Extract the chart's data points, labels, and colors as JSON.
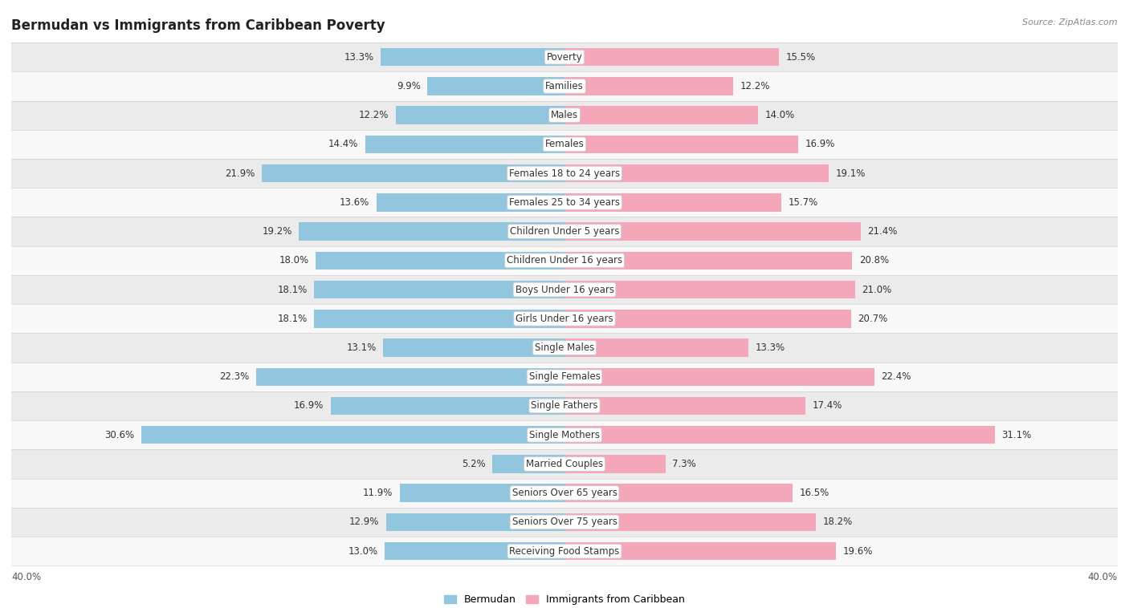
{
  "title": "Bermudan vs Immigrants from Caribbean Poverty",
  "source": "Source: ZipAtlas.com",
  "categories": [
    "Poverty",
    "Families",
    "Males",
    "Females",
    "Females 18 to 24 years",
    "Females 25 to 34 years",
    "Children Under 5 years",
    "Children Under 16 years",
    "Boys Under 16 years",
    "Girls Under 16 years",
    "Single Males",
    "Single Females",
    "Single Fathers",
    "Single Mothers",
    "Married Couples",
    "Seniors Over 65 years",
    "Seniors Over 75 years",
    "Receiving Food Stamps"
  ],
  "bermudan": [
    13.3,
    9.9,
    12.2,
    14.4,
    21.9,
    13.6,
    19.2,
    18.0,
    18.1,
    18.1,
    13.1,
    22.3,
    16.9,
    30.6,
    5.2,
    11.9,
    12.9,
    13.0
  ],
  "caribbean": [
    15.5,
    12.2,
    14.0,
    16.9,
    19.1,
    15.7,
    21.4,
    20.8,
    21.0,
    20.7,
    13.3,
    22.4,
    17.4,
    31.1,
    7.3,
    16.5,
    18.2,
    19.6
  ],
  "blue_color": "#92C5DE",
  "pink_color": "#F4A7B9",
  "row_bg_even": "#ebebeb",
  "row_bg_odd": "#f8f8f8",
  "max_val": 40.0,
  "label_fontsize": 8.5,
  "title_fontsize": 12,
  "bar_height": 0.62
}
